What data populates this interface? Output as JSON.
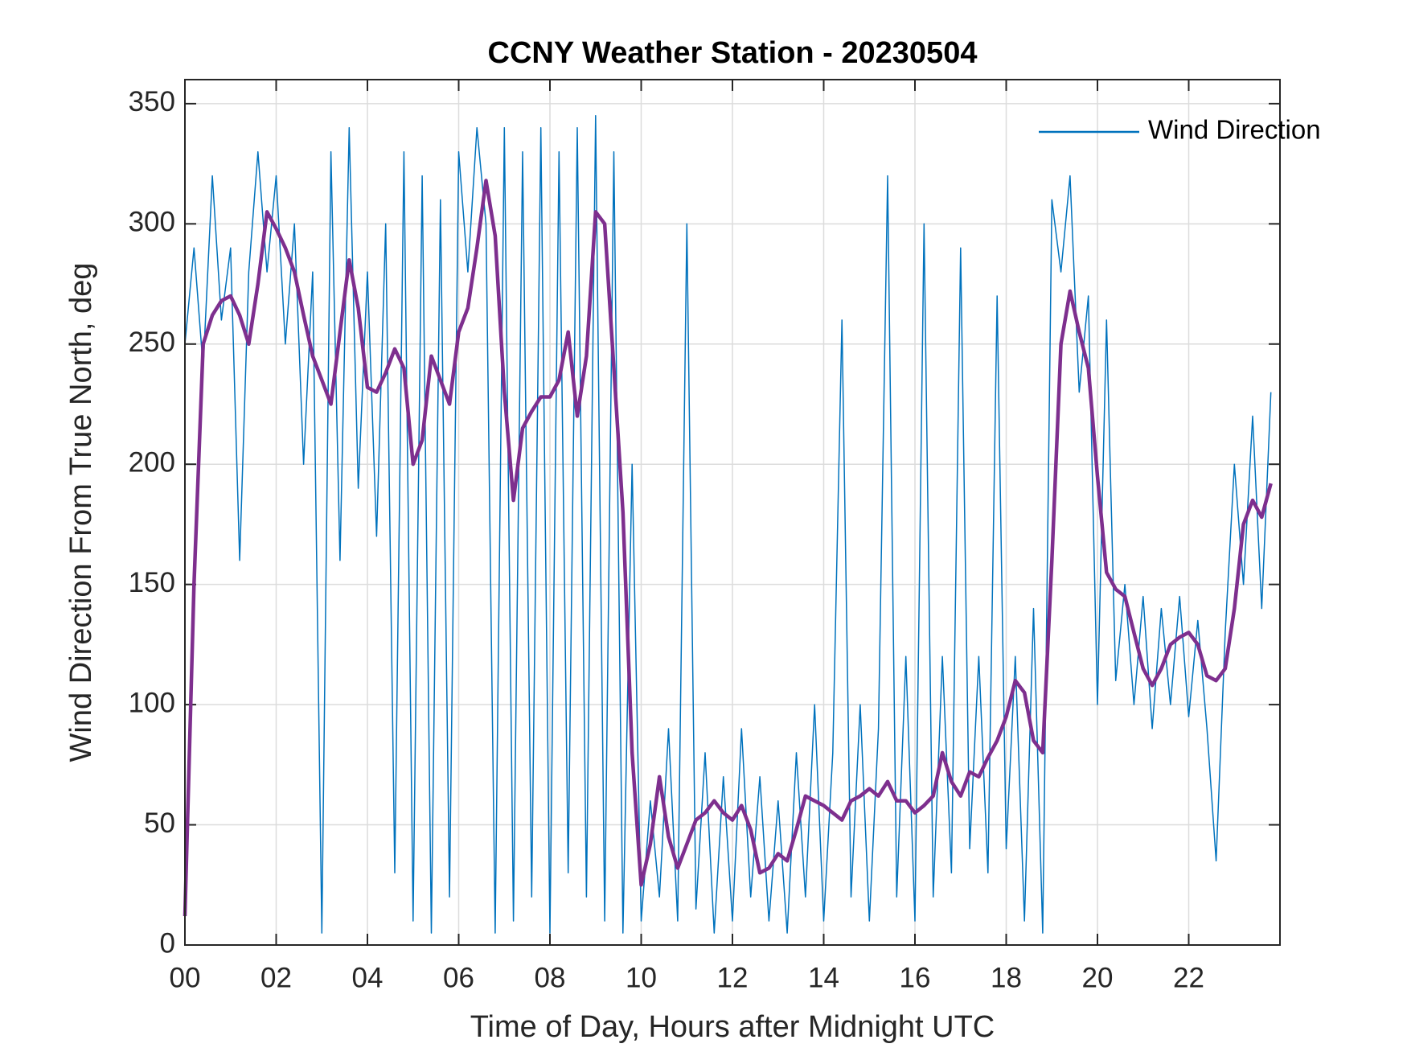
{
  "chart_data": {
    "type": "line",
    "title": "CCNY Weather Station - 20230504",
    "x_label": "Time of Day, Hours after Midnight UTC",
    "y_label": "Wind Direction From True North, deg",
    "xlim": [
      0,
      24
    ],
    "ylim": [
      0,
      360
    ],
    "xticks": [
      {
        "value": 0,
        "label": "00"
      },
      {
        "value": 2,
        "label": "02"
      },
      {
        "value": 4,
        "label": "04"
      },
      {
        "value": 6,
        "label": "06"
      },
      {
        "value": 8,
        "label": "08"
      },
      {
        "value": 10,
        "label": "10"
      },
      {
        "value": 12,
        "label": "12"
      },
      {
        "value": 14,
        "label": "14"
      },
      {
        "value": 16,
        "label": "16"
      },
      {
        "value": 18,
        "label": "18"
      },
      {
        "value": 20,
        "label": "20"
      },
      {
        "value": 22,
        "label": "22"
      }
    ],
    "yticks": [
      0,
      50,
      100,
      150,
      200,
      250,
      300,
      350
    ],
    "grid": true,
    "legend": "upper right",
    "x": [
      0,
      0.2,
      0.4,
      0.6,
      0.8,
      1,
      1.2,
      1.4,
      1.6,
      1.8,
      2,
      2.2,
      2.4,
      2.6,
      2.8,
      3,
      3.2,
      3.4,
      3.6,
      3.8,
      4,
      4.2,
      4.4,
      4.6,
      4.8,
      5,
      5.2,
      5.4,
      5.6,
      5.8,
      6,
      6.2,
      6.4,
      6.6,
      6.8,
      7,
      7.2,
      7.4,
      7.6,
      7.8,
      8,
      8.2,
      8.4,
      8.6,
      8.8,
      9,
      9.2,
      9.4,
      9.6,
      9.8,
      10,
      10.2,
      10.4,
      10.6,
      10.8,
      11,
      11.2,
      11.4,
      11.6,
      11.8,
      12,
      12.2,
      12.4,
      12.6,
      12.8,
      13,
      13.2,
      13.4,
      13.6,
      13.8,
      14,
      14.2,
      14.4,
      14.6,
      14.8,
      15,
      15.2,
      15.4,
      15.6,
      15.8,
      16,
      16.2,
      16.4,
      16.6,
      16.8,
      17,
      17.2,
      17.4,
      17.6,
      17.8,
      18,
      18.2,
      18.4,
      18.6,
      18.8,
      19,
      19.2,
      19.4,
      19.6,
      19.8,
      20,
      20.2,
      20.4,
      20.6,
      20.8,
      21,
      21.2,
      21.4,
      21.6,
      21.8,
      22,
      22.2,
      22.4,
      22.6,
      22.8,
      23,
      23.2,
      23.4,
      23.6,
      23.8
    ],
    "series": [
      {
        "name": "Wind Direction",
        "color": "#0072bd",
        "width": 1.5,
        "values": [
          250,
          290,
          240,
          320,
          260,
          290,
          160,
          280,
          330,
          280,
          320,
          250,
          300,
          200,
          280,
          5,
          330,
          160,
          340,
          190,
          280,
          170,
          300,
          30,
          330,
          10,
          320,
          5,
          310,
          20,
          330,
          280,
          340,
          300,
          5,
          340,
          10,
          330,
          20,
          340,
          5,
          330,
          30,
          340,
          20,
          345,
          10,
          330,
          5,
          200,
          10,
          60,
          20,
          90,
          10,
          300,
          15,
          80,
          5,
          70,
          10,
          90,
          20,
          70,
          10,
          60,
          5,
          80,
          20,
          100,
          10,
          80,
          260,
          20,
          100,
          10,
          90,
          320,
          20,
          120,
          10,
          300,
          20,
          120,
          30,
          290,
          40,
          120,
          30,
          270,
          40,
          120,
          10,
          140,
          5,
          310,
          280,
          320,
          230,
          270,
          100,
          260,
          110,
          150,
          100,
          145,
          90,
          140,
          100,
          145,
          95,
          135,
          90,
          35,
          130,
          200,
          150,
          220,
          140,
          230
        ]
      },
      {
        "color": "#7e2f8e",
        "width": 4.5,
        "values": [
          12,
          150,
          250,
          262,
          268,
          270,
          262,
          250,
          275,
          305,
          298,
          290,
          280,
          262,
          245,
          235,
          225,
          255,
          285,
          265,
          232,
          230,
          238,
          248,
          240,
          200,
          210,
          245,
          235,
          225,
          255,
          265,
          290,
          318,
          295,
          230,
          185,
          215,
          222,
          228,
          228,
          235,
          255,
          220,
          245,
          305,
          300,
          240,
          180,
          80,
          25,
          42,
          70,
          45,
          32,
          42,
          52,
          55,
          60,
          55,
          52,
          58,
          48,
          30,
          32,
          38,
          35,
          48,
          62,
          60,
          58,
          55,
          52,
          60,
          62,
          65,
          62,
          68,
          60,
          60,
          55,
          58,
          62,
          80,
          68,
          62,
          72,
          70,
          78,
          85,
          95,
          110,
          105,
          85,
          80,
          160,
          250,
          272,
          255,
          240,
          195,
          155,
          148,
          145,
          130,
          115,
          108,
          115,
          125,
          128,
          130,
          125,
          112,
          110,
          115,
          140,
          175,
          185,
          178,
          192
        ]
      }
    ]
  }
}
